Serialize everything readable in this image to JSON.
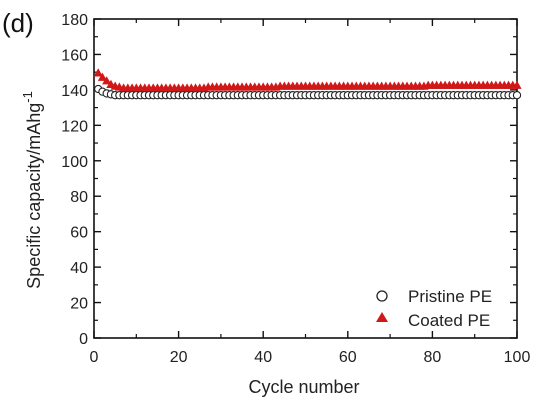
{
  "panel_label": "(d)",
  "chart_data": {
    "type": "scatter",
    "xlabel": "Cycle number",
    "ylabel": "Specific capacity/mAhg",
    "ylabel_sup": "-1",
    "xlim": [
      0,
      100
    ],
    "ylim": [
      0,
      180
    ],
    "x_ticks": [
      0,
      20,
      40,
      60,
      80,
      100
    ],
    "y_ticks": [
      0,
      20,
      40,
      60,
      80,
      100,
      120,
      140,
      160,
      180
    ],
    "grid": false,
    "legend_position": "bottom-right",
    "series": [
      {
        "name": "Pristine PE",
        "marker": "open-circle",
        "color": "#222222",
        "x": [
          1,
          2,
          3,
          4,
          5,
          6,
          7,
          8,
          9,
          10,
          11,
          12,
          13,
          14,
          15,
          16,
          17,
          18,
          19,
          20,
          21,
          22,
          23,
          24,
          25,
          26,
          27,
          28,
          29,
          30,
          31,
          32,
          33,
          34,
          35,
          36,
          37,
          38,
          39,
          40,
          41,
          42,
          43,
          44,
          45,
          46,
          47,
          48,
          49,
          50,
          51,
          52,
          53,
          54,
          55,
          56,
          57,
          58,
          59,
          60,
          61,
          62,
          63,
          64,
          65,
          66,
          67,
          68,
          69,
          70,
          71,
          72,
          73,
          74,
          75,
          76,
          77,
          78,
          79,
          80,
          81,
          82,
          83,
          84,
          85,
          86,
          87,
          88,
          89,
          90,
          91,
          92,
          93,
          94,
          95,
          96,
          97,
          98,
          99,
          100
        ],
        "y": [
          140.5,
          139,
          138,
          137.5,
          137,
          137,
          137,
          137,
          137,
          137,
          137,
          137,
          137,
          137,
          137,
          137,
          137,
          137,
          137,
          137,
          137,
          137,
          137,
          137,
          137,
          137,
          137,
          137,
          137,
          137,
          137,
          137,
          137,
          137,
          137,
          137,
          137,
          137,
          137,
          137,
          137,
          137,
          137,
          137,
          137,
          137,
          137,
          137,
          137,
          137,
          137,
          137,
          137,
          137,
          137,
          137,
          137,
          137,
          137,
          137,
          137,
          137,
          137,
          137,
          137,
          137,
          137,
          137,
          137,
          137,
          137,
          137,
          137,
          137,
          137,
          137,
          137,
          137,
          137,
          137,
          137,
          137,
          137,
          137,
          137,
          137,
          137,
          137,
          137,
          137,
          137,
          137,
          137,
          137,
          137,
          137,
          137,
          137,
          137,
          137
        ]
      },
      {
        "name": "Coated PE",
        "marker": "filled-triangle",
        "color": "#d01818",
        "x": [
          1,
          2,
          3,
          4,
          5,
          6,
          7,
          8,
          9,
          10,
          11,
          12,
          13,
          14,
          15,
          16,
          17,
          18,
          19,
          20,
          21,
          22,
          23,
          24,
          25,
          26,
          27,
          28,
          29,
          30,
          31,
          32,
          33,
          34,
          35,
          36,
          37,
          38,
          39,
          40,
          41,
          42,
          43,
          44,
          45,
          46,
          47,
          48,
          49,
          50,
          51,
          52,
          53,
          54,
          55,
          56,
          57,
          58,
          59,
          60,
          61,
          62,
          63,
          64,
          65,
          66,
          67,
          68,
          69,
          70,
          71,
          72,
          73,
          74,
          75,
          76,
          77,
          78,
          79,
          80,
          81,
          82,
          83,
          84,
          85,
          86,
          87,
          88,
          89,
          90,
          91,
          92,
          93,
          94,
          95,
          96,
          97,
          98,
          99,
          100
        ],
        "y": [
          149.5,
          147,
          145,
          143,
          142,
          141.5,
          141,
          141,
          141,
          141,
          141,
          141,
          141,
          141,
          141,
          141,
          141,
          141,
          141,
          141,
          141,
          141,
          141,
          141,
          141,
          141,
          141.5,
          141.5,
          141.5,
          141.5,
          141.5,
          141.5,
          141.5,
          141.5,
          141.5,
          141.5,
          141.5,
          141.5,
          141.5,
          141.5,
          141.5,
          141.5,
          141.5,
          142,
          142,
          142,
          142,
          142,
          142,
          142,
          142,
          142,
          142,
          142,
          142,
          142,
          142,
          142,
          142,
          142,
          142,
          142,
          142,
          142,
          142,
          142,
          142,
          142,
          142,
          142,
          142,
          142,
          142,
          142,
          142,
          142,
          142,
          142,
          142.5,
          142.5,
          142.5,
          142.5,
          142.5,
          142.5,
          142.5,
          142.5,
          142.5,
          142.5,
          142.5,
          142.5,
          142.5,
          142.5,
          142.5,
          142.5,
          142.5,
          142.5,
          142.5,
          142.5,
          142.5,
          142.5
        ]
      }
    ]
  }
}
